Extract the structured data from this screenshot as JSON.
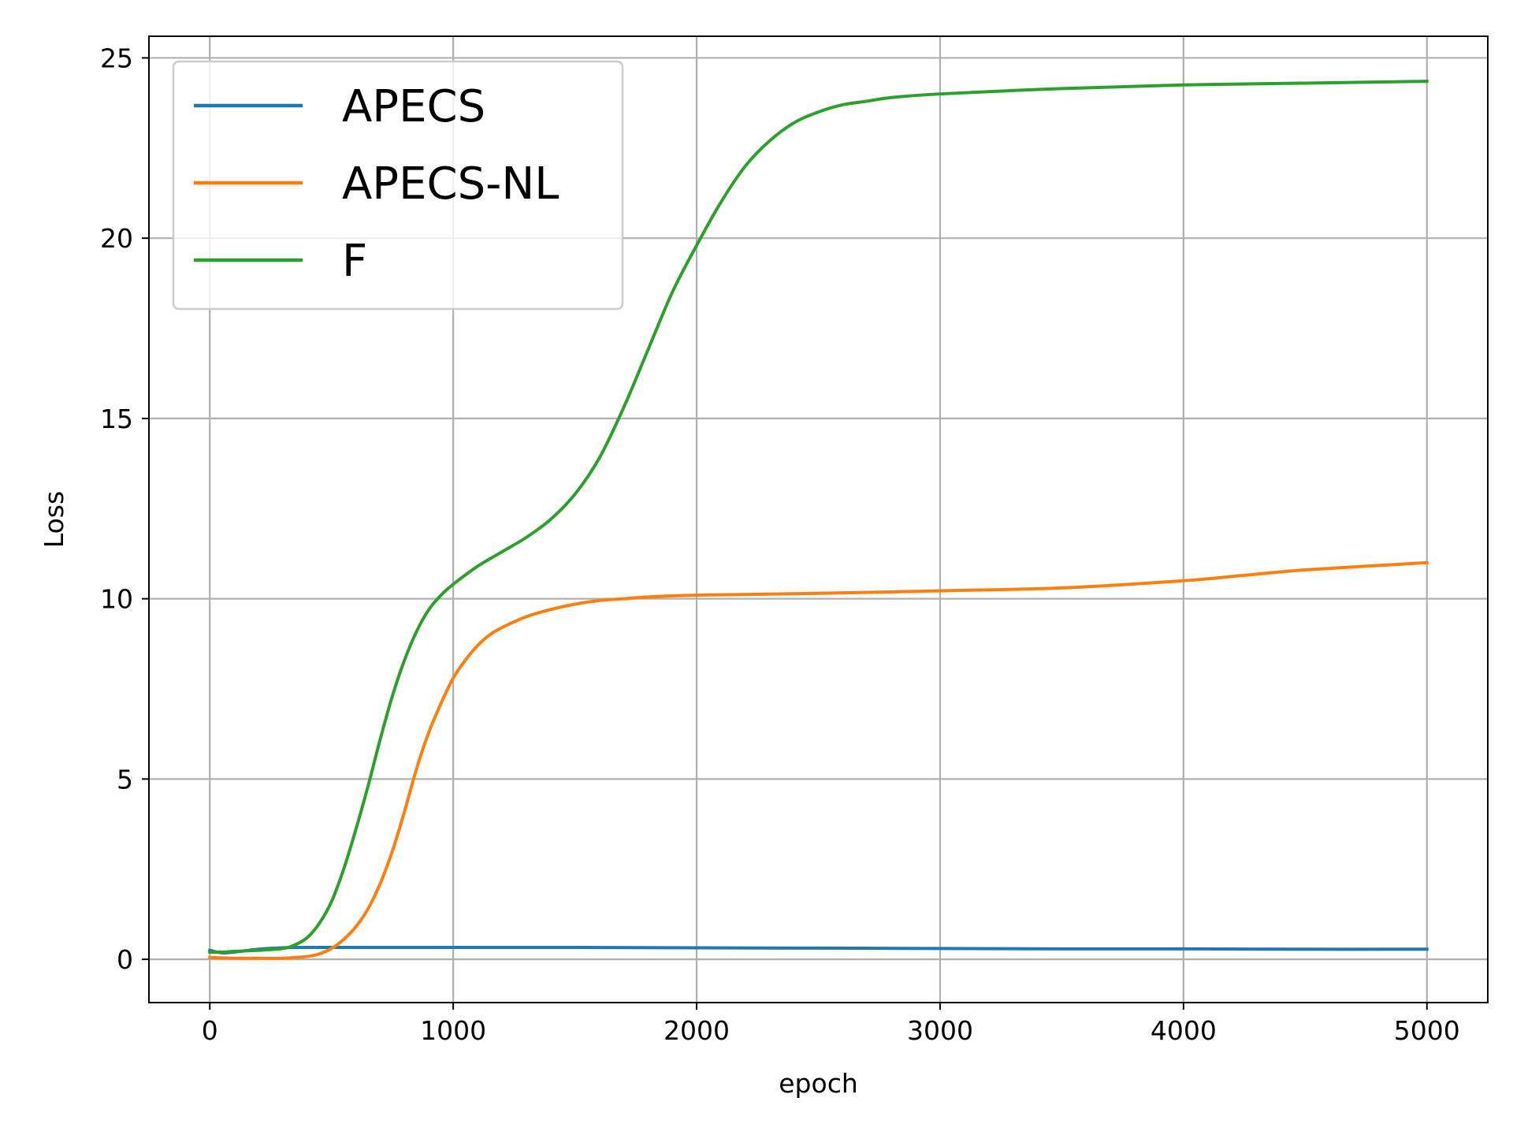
{
  "chart_data": {
    "type": "line",
    "title": "",
    "xlabel": "epoch",
    "ylabel": "Loss",
    "xlim": [
      -250,
      5250
    ],
    "ylim": [
      -1.2,
      25.6
    ],
    "xticks": [
      0,
      1000,
      2000,
      3000,
      4000,
      5000
    ],
    "xtick_labels": [
      "0",
      "1000",
      "2000",
      "3000",
      "4000",
      "5000"
    ],
    "yticks": [
      0,
      5,
      10,
      15,
      20,
      25
    ],
    "ytick_labels": [
      "0",
      "5",
      "10",
      "15",
      "20",
      "25"
    ],
    "grid": true,
    "legend_position": "upper-left",
    "series": [
      {
        "name": "APECS",
        "color": "#1f77b4",
        "x": [
          0,
          50,
          100,
          200,
          300,
          400,
          500,
          750,
          1000,
          1500,
          2000,
          2500,
          3000,
          3500,
          4000,
          4500,
          5000
        ],
        "y": [
          0.25,
          0.18,
          0.2,
          0.28,
          0.32,
          0.33,
          0.33,
          0.33,
          0.33,
          0.33,
          0.32,
          0.31,
          0.3,
          0.29,
          0.29,
          0.28,
          0.28
        ]
      },
      {
        "name": "APECS-NL",
        "color": "#ff7f0e",
        "x": [
          0,
          100,
          200,
          300,
          400,
          450,
          500,
          550,
          600,
          650,
          700,
          750,
          800,
          850,
          900,
          950,
          1000,
          1050,
          1100,
          1150,
          1200,
          1300,
          1400,
          1500,
          1600,
          1700,
          1800,
          2000,
          2500,
          3000,
          3500,
          4000,
          4250,
          4500,
          5000
        ],
        "y": [
          0.05,
          0.03,
          0.03,
          0.03,
          0.08,
          0.15,
          0.3,
          0.55,
          0.9,
          1.4,
          2.1,
          3.0,
          4.1,
          5.3,
          6.3,
          7.1,
          7.8,
          8.3,
          8.7,
          9.0,
          9.2,
          9.5,
          9.7,
          9.85,
          9.95,
          10.0,
          10.05,
          10.1,
          10.15,
          10.22,
          10.3,
          10.5,
          10.65,
          10.8,
          11.0
        ]
      },
      {
        "name": "F",
        "color": "#2ca02c",
        "x": [
          0,
          50,
          100,
          200,
          300,
          350,
          400,
          450,
          500,
          550,
          600,
          650,
          700,
          750,
          800,
          850,
          900,
          950,
          1000,
          1100,
          1200,
          1300,
          1400,
          1500,
          1600,
          1700,
          1800,
          1900,
          2000,
          2100,
          2200,
          2300,
          2400,
          2500,
          2600,
          2700,
          2800,
          3000,
          3500,
          4000,
          4500,
          5000
        ],
        "y": [
          0.2,
          0.2,
          0.22,
          0.25,
          0.3,
          0.4,
          0.6,
          1.0,
          1.6,
          2.5,
          3.6,
          4.8,
          6.1,
          7.3,
          8.3,
          9.1,
          9.7,
          10.1,
          10.4,
          10.9,
          11.3,
          11.7,
          12.2,
          12.9,
          13.9,
          15.3,
          16.9,
          18.5,
          19.8,
          21.0,
          22.0,
          22.7,
          23.2,
          23.5,
          23.7,
          23.8,
          23.9,
          24.0,
          24.15,
          24.25,
          24.3,
          24.35
        ]
      }
    ]
  }
}
